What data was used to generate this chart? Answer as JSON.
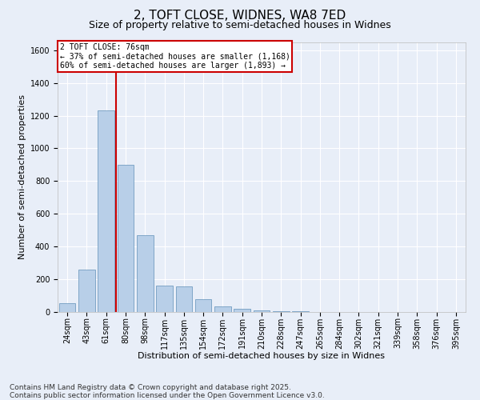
{
  "title": "2, TOFT CLOSE, WIDNES, WA8 7ED",
  "subtitle": "Size of property relative to semi-detached houses in Widnes",
  "xlabel": "Distribution of semi-detached houses by size in Widnes",
  "ylabel": "Number of semi-detached properties",
  "categories": [
    "24sqm",
    "43sqm",
    "61sqm",
    "80sqm",
    "98sqm",
    "117sqm",
    "135sqm",
    "154sqm",
    "172sqm",
    "191sqm",
    "210sqm",
    "228sqm",
    "247sqm",
    "265sqm",
    "284sqm",
    "302sqm",
    "321sqm",
    "339sqm",
    "358sqm",
    "376sqm",
    "395sqm"
  ],
  "values": [
    55,
    260,
    1230,
    900,
    470,
    160,
    155,
    80,
    35,
    20,
    12,
    5,
    3,
    2,
    1,
    1,
    1,
    0,
    0,
    0,
    0
  ],
  "bar_color": "#b8cfe8",
  "bar_edge_color": "#6090b8",
  "vline_color": "#cc0000",
  "vline_position": 2.5,
  "property_label": "2 TOFT CLOSE: 76sqm",
  "smaller_text": "← 37% of semi-detached houses are smaller (1,168)",
  "larger_text": "60% of semi-detached houses are larger (1,893) →",
  "box_edge_color": "#cc0000",
  "ylim": [
    0,
    1650
  ],
  "yticks": [
    0,
    200,
    400,
    600,
    800,
    1000,
    1200,
    1400,
    1600
  ],
  "background_color": "#e8eef8",
  "grid_color": "#ffffff",
  "footer_line1": "Contains HM Land Registry data © Crown copyright and database right 2025.",
  "footer_line2": "Contains public sector information licensed under the Open Government Licence v3.0.",
  "title_fontsize": 11,
  "subtitle_fontsize": 9,
  "axis_label_fontsize": 8,
  "tick_fontsize": 7,
  "ann_fontsize": 7,
  "footer_fontsize": 6.5
}
